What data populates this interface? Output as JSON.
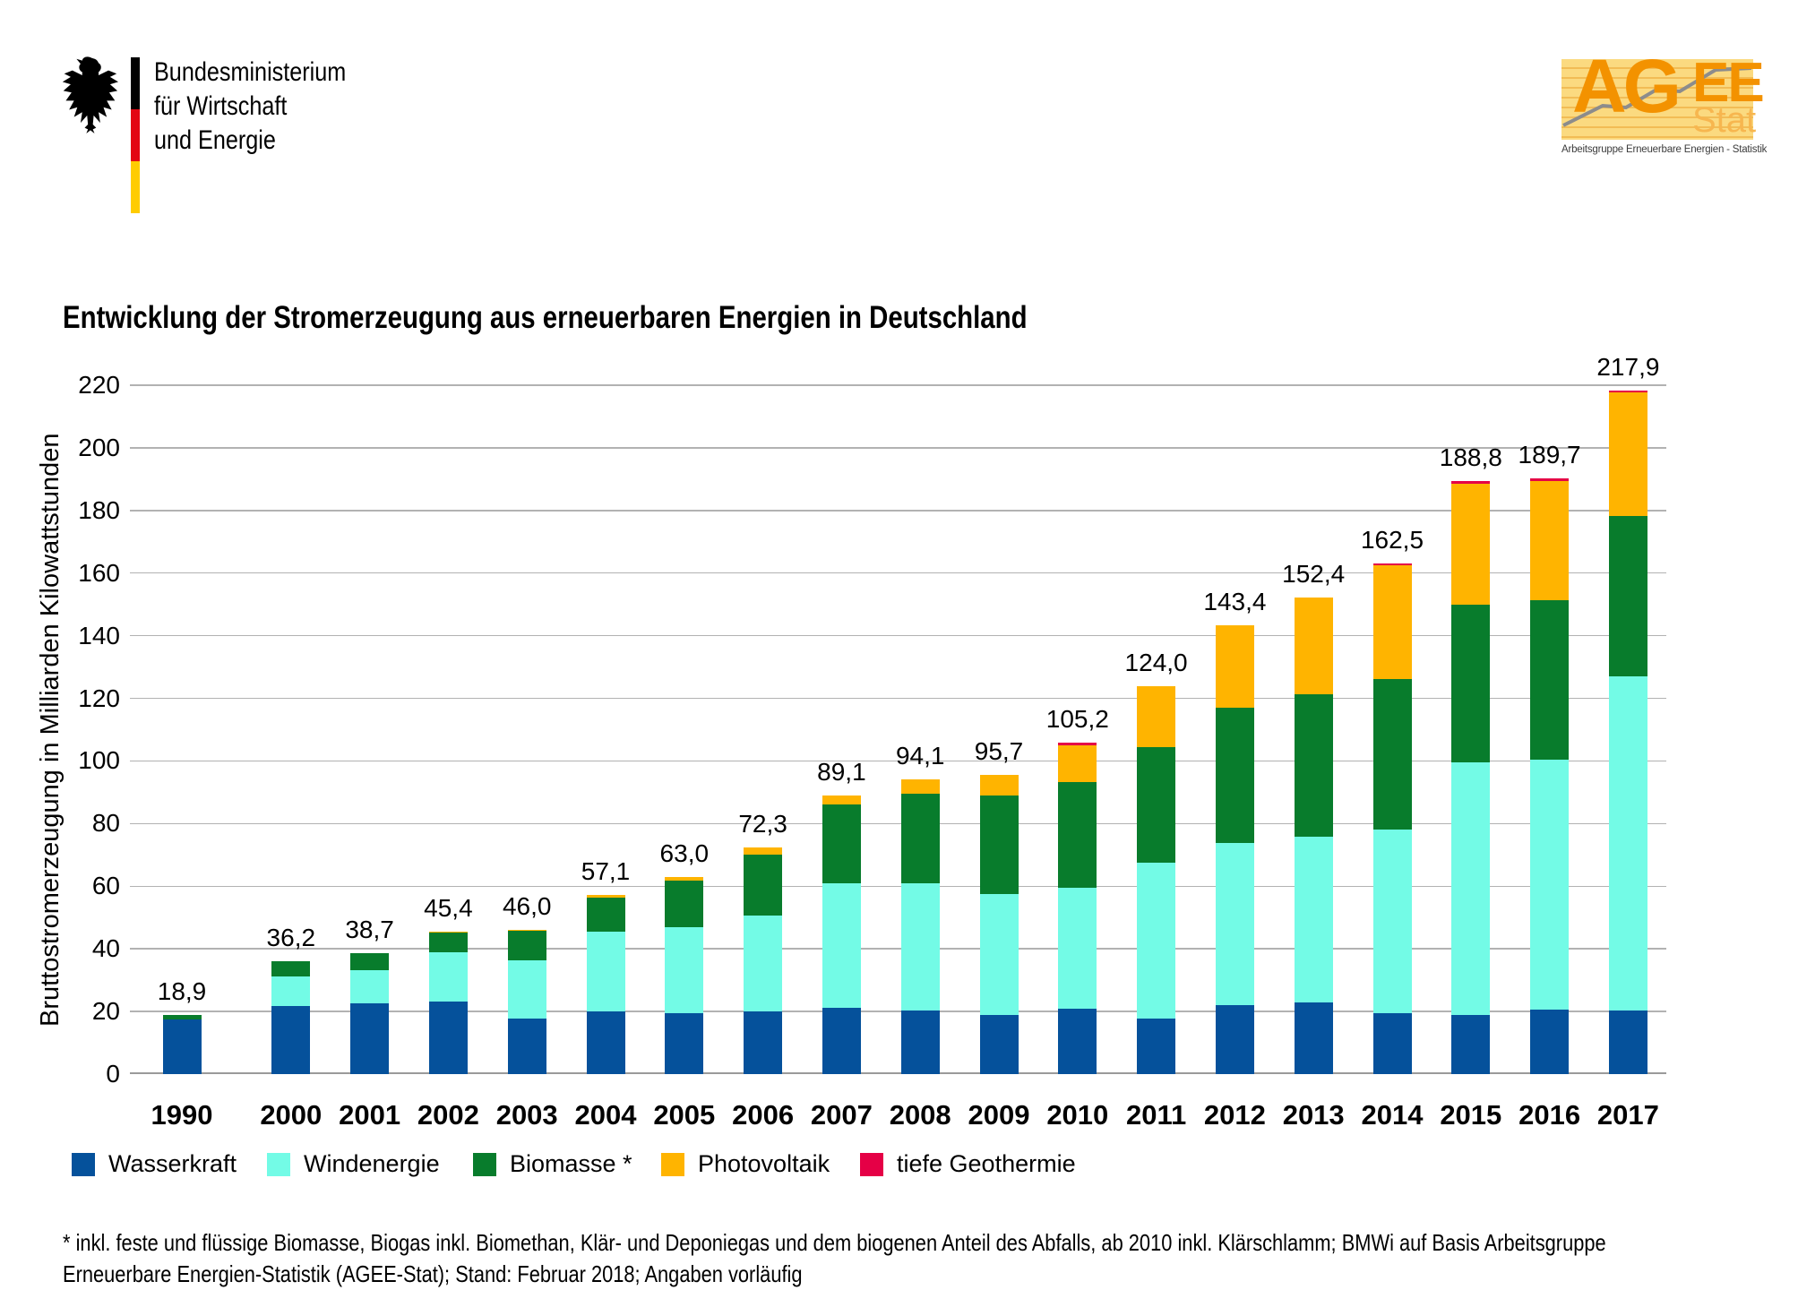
{
  "header": {
    "ministry": {
      "line1": "Bundesministerium",
      "line2": "für Wirtschaft",
      "line3": "und Energie"
    },
    "agee": {
      "big1": "AG",
      "big2": "EE",
      "stat": "Stat",
      "caption": "Arbeitsgruppe Erneuerbare Energien - Statistik"
    }
  },
  "title": "Entwicklung der Stromerzeugung aus erneuerbaren Energien in Deutschland",
  "chart_data": {
    "type": "bar",
    "stacked": true,
    "title": "Entwicklung der Stromerzeugung aus erneuerbaren Energien in Deutschland",
    "ylabel": "Bruttostromerzeugung in Milliarden Kilowattstunden",
    "xlabel": "",
    "ylim": [
      0,
      220
    ],
    "yticks": [
      0,
      20,
      40,
      60,
      80,
      100,
      120,
      140,
      160,
      180,
      200,
      220
    ],
    "grid": true,
    "legend_position": "bottom",
    "categories": [
      "1990",
      "2000",
      "2001",
      "2002",
      "2003",
      "2004",
      "2005",
      "2006",
      "2007",
      "2008",
      "2009",
      "2010",
      "2011",
      "2012",
      "2013",
      "2014",
      "2015",
      "2016",
      "2017"
    ],
    "series": [
      {
        "name": "Wasserkraft",
        "color": "#05519B",
        "values": [
          17.4,
          21.7,
          22.7,
          23.1,
          17.7,
          20.1,
          19.6,
          20.0,
          21.2,
          20.4,
          19.0,
          20.9,
          17.7,
          22.1,
          23.0,
          19.6,
          19.0,
          20.5,
          20.2
        ]
      },
      {
        "name": "Windenergie",
        "color": "#73FBE6",
        "values": [
          0.1,
          9.5,
          10.5,
          15.8,
          18.7,
          25.5,
          27.2,
          30.7,
          39.7,
          40.6,
          38.6,
          38.5,
          49.9,
          51.7,
          52.7,
          58.5,
          80.6,
          79.9,
          106.7
        ]
      },
      {
        "name": "Biomasse *",
        "color": "#087C2C",
        "values": [
          1.4,
          4.9,
          5.4,
          6.3,
          9.3,
          10.9,
          14.9,
          19.4,
          25.1,
          28.7,
          31.5,
          34.0,
          36.8,
          43.2,
          45.5,
          48.2,
          50.3,
          51.0,
          51.4
        ]
      },
      {
        "name": "Photovoltaik",
        "color": "#FFB400",
        "values": [
          0.0,
          0.1,
          0.1,
          0.2,
          0.3,
          0.6,
          1.3,
          2.2,
          3.1,
          4.4,
          6.6,
          11.7,
          19.6,
          26.4,
          31.0,
          36.1,
          38.7,
          38.1,
          39.4
        ]
      },
      {
        "name": "tiefe Geothermie",
        "color": "#E50046",
        "values": [
          0,
          0,
          0,
          0,
          0,
          0,
          0,
          0,
          0,
          0,
          0,
          0.03,
          0.02,
          0.03,
          0.08,
          0.1,
          0.13,
          0.18,
          0.16
        ]
      }
    ],
    "totals": [
      "18,9",
      "36,2",
      "38,7",
      "45,4",
      "46,0",
      "57,1",
      "63,0",
      "72,3",
      "89,1",
      "94,1",
      "95,7",
      "105,2",
      "124,0",
      "143,4",
      "152,4",
      "162,5",
      "188,8",
      "189,7",
      "217,9"
    ],
    "geothermie_sliver_years": [
      "2010",
      "2014",
      "2015",
      "2016",
      "2017"
    ]
  },
  "footnote": {
    "line1": "* inkl. feste und flüssige Biomasse, Biogas inkl. Biomethan, Klär- und Deponiegas und dem biogenen Anteil des Abfalls, ab 2010 inkl. Klärschlamm; BMWi auf Basis Arbeitsgruppe",
    "line2": "Erneuerbare Energien-Statistik (AGEE-Stat); Stand: Februar 2018; Angaben vorläufig"
  },
  "colors": {
    "flag_black": "#000000",
    "flag_red": "#E30613",
    "flag_gold": "#FFCC00",
    "agee_orange": "#F39200",
    "gridline": "#B2B2B2",
    "axis": "#9A9A9A"
  }
}
